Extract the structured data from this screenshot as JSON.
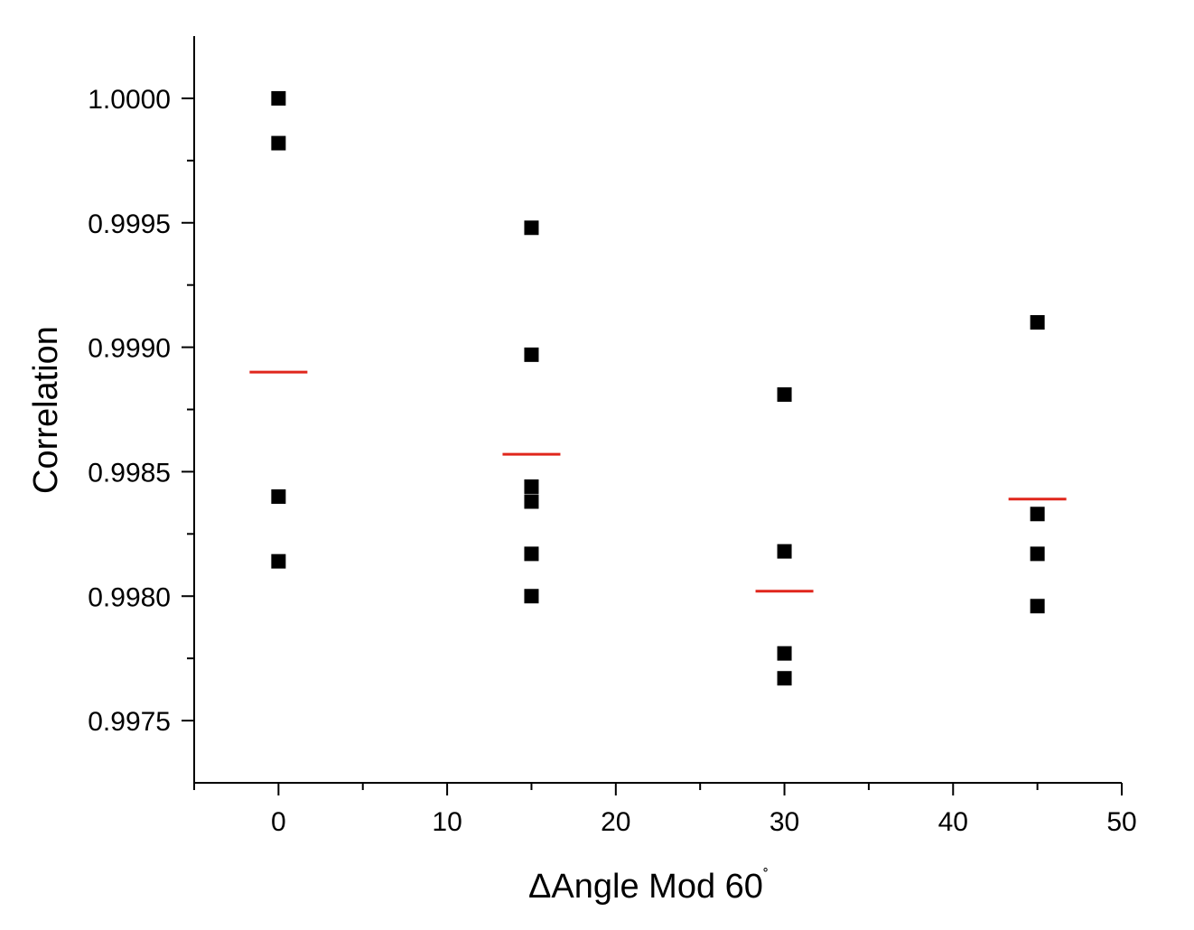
{
  "chart_data": {
    "type": "scatter",
    "title": "",
    "xlabel": "ΔAngle Mod 60",
    "xlabel_suffix": "˚",
    "ylabel": "Correlation",
    "xlim": [
      -5,
      50
    ],
    "ylim": [
      0.99725,
      1.00025
    ],
    "x_ticks": [
      0,
      10,
      20,
      30,
      40,
      50
    ],
    "x_tick_labels": [
      "0",
      "10",
      "20",
      "30",
      "40",
      "50"
    ],
    "x_minor_ticks": [
      -5,
      5,
      15,
      25,
      35,
      45
    ],
    "y_ticks": [
      0.9975,
      0.998,
      0.9985,
      0.999,
      0.9995,
      1.0
    ],
    "y_tick_labels": [
      "0.9975",
      "0.9980",
      "0.9985",
      "0.9990",
      "0.9995",
      "1.0000"
    ],
    "y_minor_ticks": [
      0.99775,
      0.99825,
      0.99875,
      0.99925,
      0.99975
    ],
    "grid": false,
    "legend": "none",
    "series": [
      {
        "marker": "square",
        "color": "#000000",
        "points": [
          {
            "x": 0,
            "y": 1.0
          },
          {
            "x": 0,
            "y": 0.99982
          },
          {
            "x": 0,
            "y": 0.9984
          },
          {
            "x": 0,
            "y": 0.99814
          },
          {
            "x": 15,
            "y": 0.99948
          },
          {
            "x": 15,
            "y": 0.99897
          },
          {
            "x": 15,
            "y": 0.99844
          },
          {
            "x": 15,
            "y": 0.99838
          },
          {
            "x": 15,
            "y": 0.99817
          },
          {
            "x": 15,
            "y": 0.998
          },
          {
            "x": 30,
            "y": 0.99881
          },
          {
            "x": 30,
            "y": 0.99818
          },
          {
            "x": 30,
            "y": 0.99777
          },
          {
            "x": 30,
            "y": 0.99767
          },
          {
            "x": 45,
            "y": 0.9991
          },
          {
            "x": 45,
            "y": 0.99833
          },
          {
            "x": 45,
            "y": 0.99817
          },
          {
            "x": 45,
            "y": 0.99796
          }
        ]
      },
      {
        "marker": "hline",
        "color": "#e0261c",
        "points": [
          {
            "x": 0,
            "y": 0.9989
          },
          {
            "x": 15,
            "y": 0.99857
          },
          {
            "x": 30,
            "y": 0.99802
          },
          {
            "x": 45,
            "y": 0.99839
          }
        ]
      }
    ]
  }
}
